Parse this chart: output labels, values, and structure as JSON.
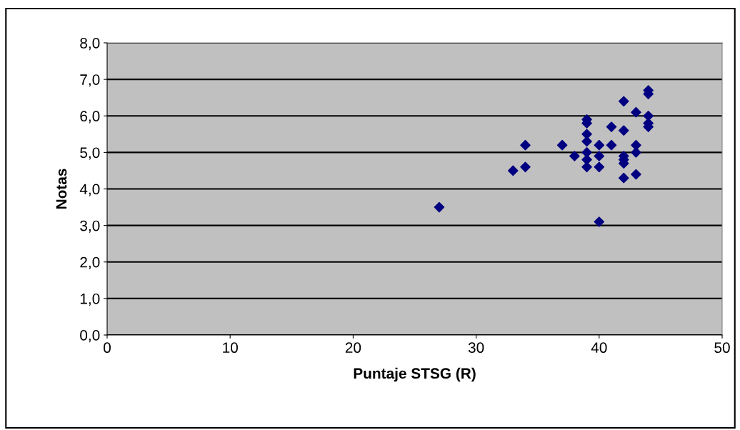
{
  "chart_data": {
    "type": "scatter",
    "xlabel": "Puntaje STSG (R)",
    "ylabel": "Notas",
    "xlim": [
      0,
      50
    ],
    "xticks": [
      0,
      10,
      20,
      30,
      40,
      50
    ],
    "ylim": [
      0,
      8
    ],
    "yticks": [
      {
        "value": 0,
        "label": "0,0"
      },
      {
        "value": 1,
        "label": "1,0"
      },
      {
        "value": 2,
        "label": "2,0"
      },
      {
        "value": 3,
        "label": "3,0"
      },
      {
        "value": 4,
        "label": "4,0"
      },
      {
        "value": 5,
        "label": "5,0"
      },
      {
        "value": 6,
        "label": "6,0"
      },
      {
        "value": 7,
        "label": "7,0"
      },
      {
        "value": 8,
        "label": "8,0"
      }
    ],
    "grid": "y",
    "marker": "diamond",
    "legend": false,
    "series": [
      {
        "color": "#000080",
        "x": [
          27,
          33,
          34,
          34,
          37,
          38,
          39,
          39,
          39,
          39,
          39,
          39,
          39,
          40,
          40,
          40,
          40,
          41,
          41,
          42,
          42,
          42,
          42,
          42,
          42,
          43,
          43,
          43,
          43,
          44,
          44,
          44,
          44,
          44
        ],
        "values": [
          3.5,
          4.5,
          4.6,
          5.2,
          5.2,
          4.9,
          5.9,
          5.8,
          5.5,
          5.3,
          5.0,
          4.8,
          4.6,
          5.2,
          4.9,
          4.6,
          3.1,
          5.7,
          5.2,
          6.4,
          5.6,
          4.9,
          4.8,
          4.7,
          4.3,
          6.1,
          5.2,
          5.0,
          4.4,
          6.7,
          6.6,
          6.0,
          5.8,
          5.7
        ]
      }
    ]
  }
}
